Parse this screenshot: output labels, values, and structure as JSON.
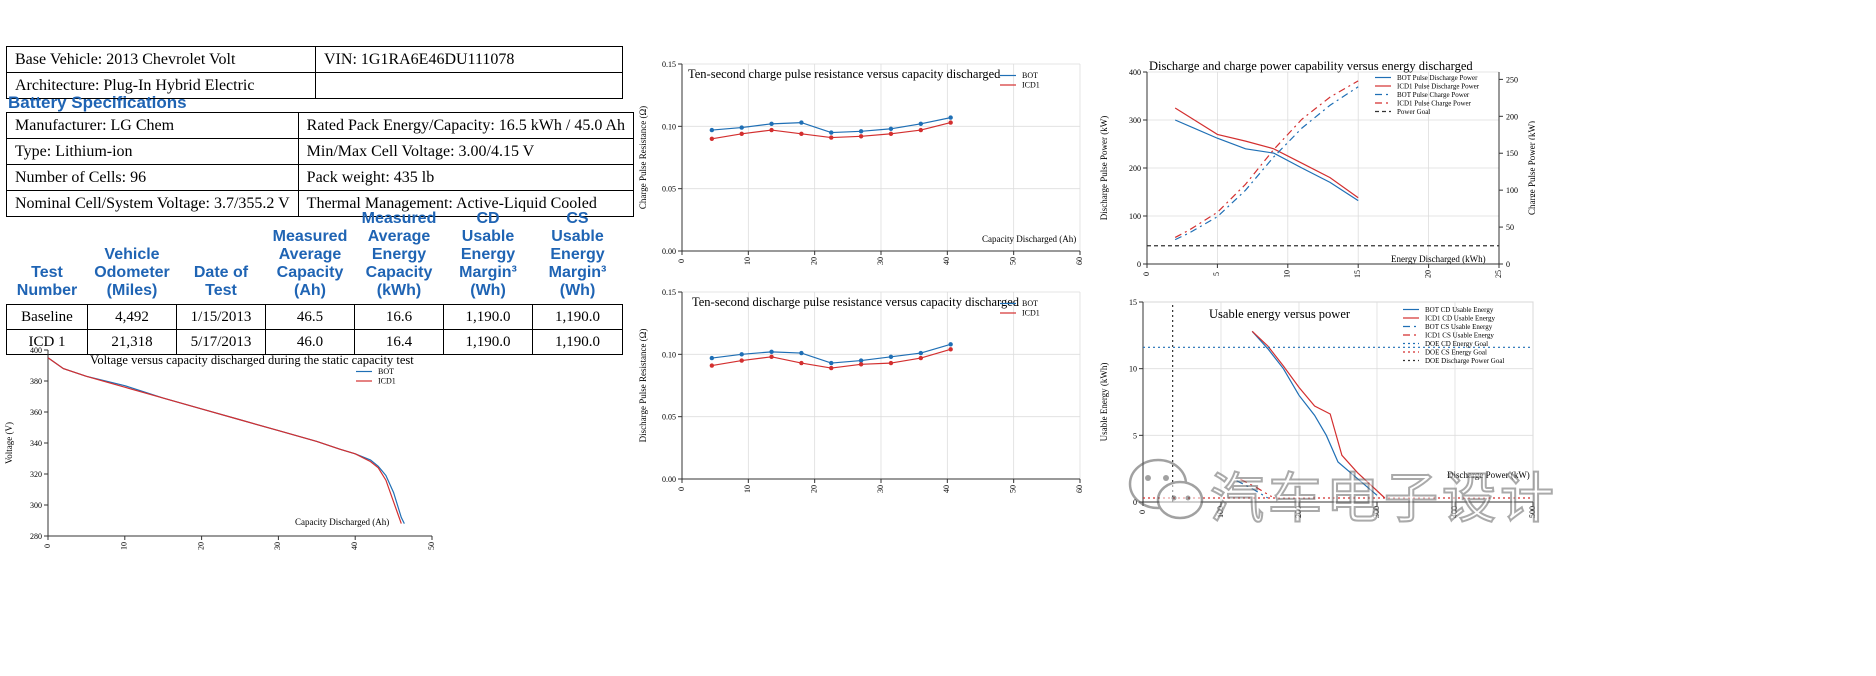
{
  "vehicle_info": [
    [
      "Base Vehicle: 2013 Chevrolet Volt",
      "VIN: 1G1RA6E46DU111078"
    ],
    [
      "Architecture: Plug-In Hybrid Electric",
      ""
    ]
  ],
  "battery_section_title": "Battery Specifications",
  "battery_specs": [
    [
      "Manufacturer: LG Chem",
      "Rated Pack Energy/Capacity: 16.5 kWh / 45.0 Ah"
    ],
    [
      "Type: Lithium-ion",
      "Min/Max Cell Voltage: 3.00/4.15 V"
    ],
    [
      "Number of Cells: 96",
      "Pack weight: 435 lb"
    ],
    [
      "Nominal Cell/System Voltage: 3.7/355.2 V",
      "Thermal Management: Active-Liquid Cooled"
    ]
  ],
  "test_table": {
    "headers": [
      [
        "Test",
        "Number"
      ],
      [
        "Vehicle",
        "Odometer",
        "(Miles)"
      ],
      [
        "Date of",
        "Test"
      ],
      [
        "Measured",
        "Average",
        "Capacity",
        "(Ah)"
      ],
      [
        "Measured",
        "Average",
        "Energy",
        "Capacity",
        "(kWh)"
      ],
      [
        "CD",
        "Usable",
        "Energy",
        "Margin³",
        "(Wh)"
      ],
      [
        "CS",
        "Usable",
        "Energy",
        "Margin³",
        "(Wh)"
      ]
    ],
    "rows": [
      [
        "Baseline",
        "4,492",
        "1/15/2013",
        "46.5",
        "16.6",
        "1,190.0",
        "1,190.0"
      ],
      [
        "ICD 1",
        "21,318",
        "5/17/2013",
        "46.0",
        "16.4",
        "1,190.0",
        "1,190.0"
      ]
    ]
  },
  "watermark": "汽车电子设计",
  "colors": {
    "bot": "#1f6fb5",
    "icd1": "#d32f2f",
    "goal": "#333333",
    "heading": "#1f64b4"
  },
  "chart_data": [
    {
      "id": "voltage",
      "type": "line",
      "title": "Voltage versus capacity discharged during the static capacity test",
      "xlabel": "Capacity Discharged (Ah)",
      "ylabel": "Voltage (V)",
      "xlim": [
        0,
        50
      ],
      "ylim": [
        280,
        400
      ],
      "xticks": [
        0,
        10,
        20,
        30,
        40,
        50
      ],
      "yticks": [
        280,
        300,
        320,
        340,
        360,
        380,
        400
      ],
      "legend": "top-right",
      "series": [
        {
          "name": "BOT",
          "color": "#1f6fb5",
          "x": [
            0,
            2,
            5,
            10,
            15,
            20,
            25,
            30,
            35,
            38,
            40,
            42,
            43,
            44,
            45,
            46,
            46.4
          ],
          "y": [
            395,
            388,
            383,
            377,
            369,
            362,
            355,
            348,
            341,
            336,
            333,
            329,
            325,
            319,
            308,
            292,
            288
          ]
        },
        {
          "name": "ICD1",
          "color": "#d32f2f",
          "x": [
            0,
            2,
            5,
            10,
            15,
            20,
            25,
            30,
            35,
            38,
            40,
            42,
            43,
            44,
            45,
            45.5,
            46
          ],
          "y": [
            395,
            388,
            383,
            376,
            369,
            362,
            355,
            348,
            341,
            336,
            333,
            328,
            324,
            316,
            302,
            295,
            288
          ]
        }
      ]
    },
    {
      "id": "charge_res",
      "type": "line",
      "title": "Ten-second charge pulse resistance versus capacity discharged",
      "xlabel": "Capacity Discharged (Ah)",
      "ylabel": "Charge Pulse Resistance (Ω)",
      "xlim": [
        0,
        60
      ],
      "ylim": [
        0,
        0.15
      ],
      "xticks": [
        0,
        10,
        20,
        30,
        40,
        50,
        60
      ],
      "yticks": [
        "0.00",
        "0.05",
        "0.10",
        "0.15"
      ],
      "legend": "top-right",
      "series": [
        {
          "name": "BOT",
          "color": "#1f6fb5",
          "x": [
            4.5,
            9,
            13.5,
            18,
            22.5,
            27,
            31.5,
            36,
            40.5
          ],
          "y": [
            0.097,
            0.099,
            0.102,
            0.103,
            0.095,
            0.096,
            0.098,
            0.102,
            0.107
          ]
        },
        {
          "name": "ICD1",
          "color": "#d32f2f",
          "x": [
            4.5,
            9,
            13.5,
            18,
            22.5,
            27,
            31.5,
            36,
            40.5
          ],
          "y": [
            0.09,
            0.094,
            0.097,
            0.094,
            0.091,
            0.092,
            0.094,
            0.097,
            0.103
          ]
        }
      ]
    },
    {
      "id": "discharge_res",
      "type": "line",
      "title": "Ten-second discharge pulse resistance versus capacity discharged",
      "xlabel": "",
      "ylabel": "Discharge Pulse Resistance (Ω)",
      "xlim": [
        0,
        60
      ],
      "ylim": [
        0,
        0.15
      ],
      "xticks": [
        0,
        10,
        20,
        30,
        40,
        50,
        60
      ],
      "yticks": [
        "0.00",
        "0.05",
        "0.10",
        "0.15"
      ],
      "legend": "top-right",
      "series": [
        {
          "name": "BOT",
          "color": "#1f6fb5",
          "x": [
            4.5,
            9,
            13.5,
            18,
            22.5,
            27,
            31.5,
            36,
            40.5
          ],
          "y": [
            0.097,
            0.1,
            0.102,
            0.101,
            0.093,
            0.095,
            0.098,
            0.101,
            0.108
          ]
        },
        {
          "name": "ICD1",
          "color": "#d32f2f",
          "x": [
            4.5,
            9,
            13.5,
            18,
            22.5,
            27,
            31.5,
            36,
            40.5
          ],
          "y": [
            0.091,
            0.095,
            0.098,
            0.093,
            0.089,
            0.092,
            0.093,
            0.097,
            0.104
          ]
        }
      ]
    },
    {
      "id": "power",
      "type": "line",
      "title": "Discharge and charge power capability versus energy discharged",
      "xlabel": "Energy Discharged (kWh)",
      "ylabel": "Discharge Pulse Power (kW)",
      "y2label": "Charge Pulse Power (kW)",
      "xlim": [
        0,
        25
      ],
      "ylim": [
        0,
        400
      ],
      "y2lim": [
        0,
        260
      ],
      "xticks": [
        0,
        5,
        10,
        15,
        20,
        25
      ],
      "yticks": [
        0,
        100,
        200,
        300,
        400
      ],
      "y2ticks": [
        0,
        50,
        100,
        150,
        200,
        250
      ],
      "legend": "top-left",
      "series": [
        {
          "name": "BOT Pulse Discharge Power",
          "color": "#1f6fb5",
          "dash": "",
          "axis": "left",
          "x": [
            2,
            5,
            7,
            9,
            11,
            13,
            15
          ],
          "y": [
            300,
            262,
            240,
            231,
            200,
            170,
            132
          ]
        },
        {
          "name": "ICD1 Pulse Discharge Power",
          "color": "#d32f2f",
          "dash": "",
          "axis": "left",
          "x": [
            2,
            5,
            7,
            9,
            11,
            13,
            15
          ],
          "y": [
            325,
            270,
            256,
            240,
            210,
            180,
            138
          ]
        },
        {
          "name": "BOT Pulse Charge Power",
          "color": "#1f6fb5",
          "dash": "7,4,2,4",
          "axis": "right",
          "x": [
            2,
            3,
            5,
            7,
            9,
            11,
            13,
            15
          ],
          "y": [
            33,
            42,
            64,
            100,
            145,
            184,
            215,
            240
          ]
        },
        {
          "name": "ICD1 Pulse Charge Power",
          "color": "#d32f2f",
          "dash": "7,4,2,4",
          "axis": "right",
          "x": [
            2,
            3,
            5,
            7,
            9,
            11,
            13,
            15
          ],
          "y": [
            36,
            46,
            70,
            108,
            155,
            196,
            226,
            248
          ]
        },
        {
          "name": "Power Goal",
          "color": "#333333",
          "dash": "4,3",
          "axis": "left",
          "x": [
            0,
            25
          ],
          "y": [
            38,
            38
          ]
        }
      ]
    },
    {
      "id": "usable",
      "type": "line",
      "title": "Usable energy versus power",
      "xlabel": "Discharge Power (kW)",
      "ylabel": "Usable Energy (kWh)",
      "xlim": [
        0,
        500
      ],
      "ylim": [
        0,
        15
      ],
      "xticks": [
        0,
        100,
        200,
        300,
        400,
        500
      ],
      "yticks": [
        0,
        5,
        10,
        15
      ],
      "legend": "top-right",
      "series": [
        {
          "name": "BOT CD Usable Energy",
          "color": "#1f6fb5",
          "dash": "",
          "x": [
            140,
            160,
            180,
            200,
            220,
            235,
            250,
            270,
            300
          ],
          "y": [
            12.8,
            11.5,
            10,
            8,
            6.5,
            5,
            3,
            2,
            0.5
          ]
        },
        {
          "name": "ICD1 CD Usable Energy",
          "color": "#d32f2f",
          "dash": "",
          "x": [
            140,
            160,
            180,
            200,
            220,
            240,
            255,
            275,
            310
          ],
          "y": [
            12.8,
            11.7,
            10.2,
            8.6,
            7.2,
            6.6,
            3.5,
            2.2,
            0.3
          ]
        },
        {
          "name": "BOT CS Usable Energy",
          "color": "#1f6fb5",
          "dash": "7,4,2,4",
          "x": [
            120,
            140,
            160
          ],
          "y": [
            1.6,
            1.0,
            0.3
          ]
        },
        {
          "name": "ICD1 CS Usable Energy",
          "color": "#d32f2f",
          "dash": "7,4,2,4",
          "x": [
            125,
            145,
            165
          ],
          "y": [
            1.7,
            1.1,
            0.4
          ]
        },
        {
          "name": "DOE CD Energy Goal",
          "color": "#1f6fb5",
          "dash": "2,3",
          "x": [
            0,
            500
          ],
          "y": [
            11.6,
            11.6
          ]
        },
        {
          "name": "DOE CS Energy Goal",
          "color": "#d32f2f",
          "dash": "2,3",
          "x": [
            0,
            500
          ],
          "y": [
            0.3,
            0.3
          ]
        },
        {
          "name": "DOE Discharge Power Goal",
          "color": "#333333",
          "dash": "2,3",
          "x": [
            38,
            38
          ],
          "y": [
            0,
            15
          ]
        }
      ]
    }
  ]
}
